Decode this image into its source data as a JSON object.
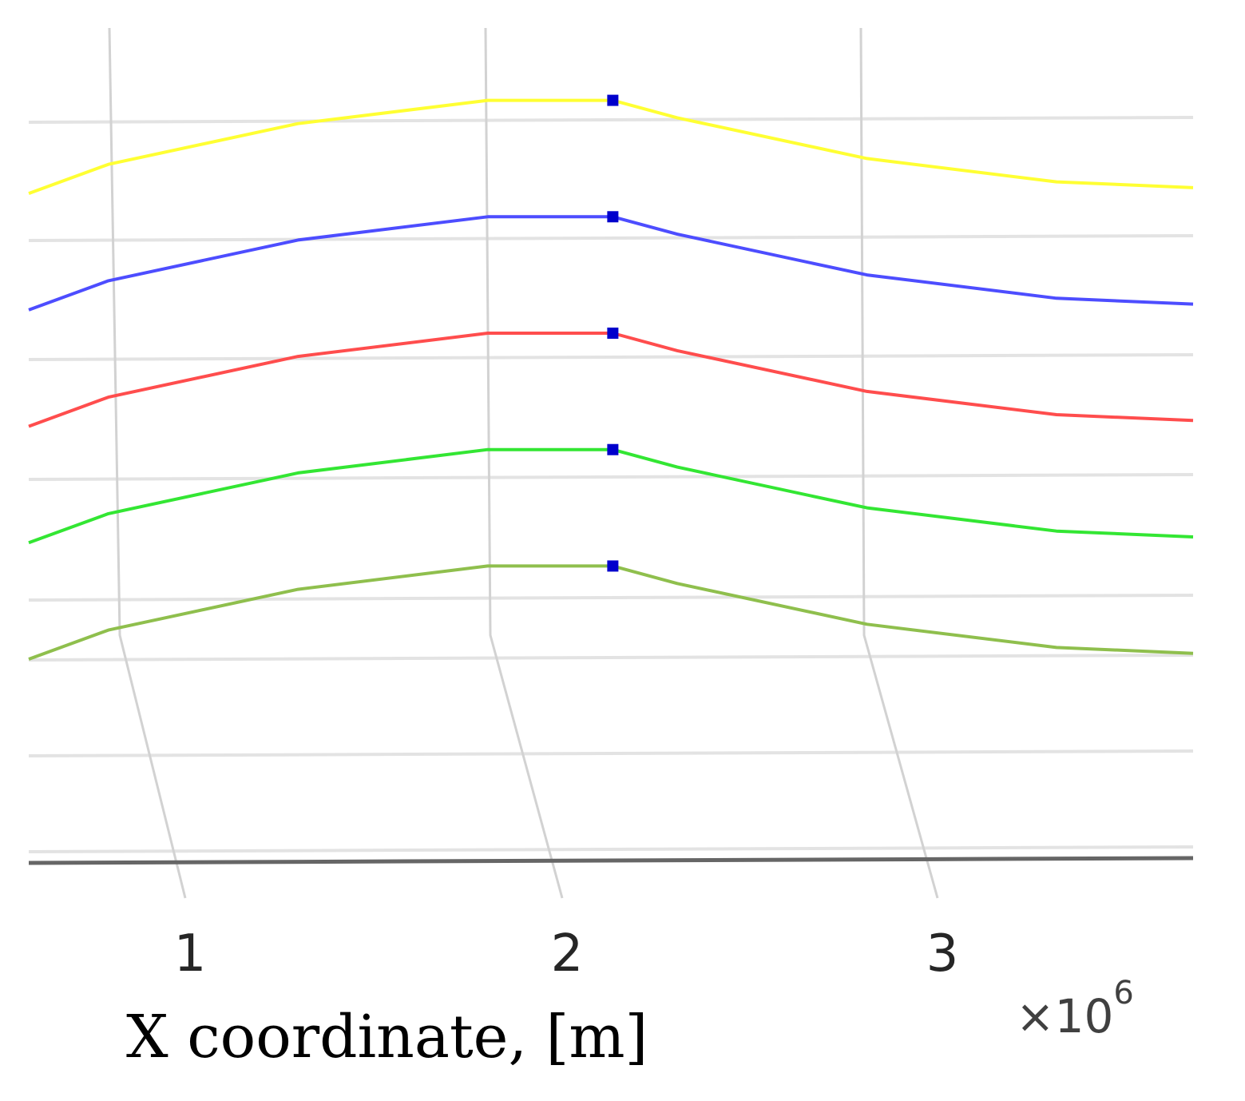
{
  "chart_data": {
    "type": "line",
    "title": "",
    "xlabel": "X coordinate, [m]",
    "x_multiplier": "×10",
    "x_multiplier_exponent": "6",
    "xlim": [
      0.79,
      3.86
    ],
    "xticks": [
      {
        "value": 1,
        "label": "1"
      },
      {
        "value": 2,
        "label": "2"
      },
      {
        "value": 3,
        "label": "3"
      }
    ],
    "ylim": [
      0,
      7
    ],
    "grid": true,
    "series": [
      {
        "color": "#ffff33",
        "points": [
          [
            0.79,
            5.75
          ],
          [
            1.0,
            6.0
          ],
          [
            1.5,
            6.35
          ],
          [
            2.0,
            6.55
          ],
          [
            2.33,
            6.55
          ],
          [
            2.5,
            6.4
          ],
          [
            3.0,
            6.05
          ],
          [
            3.5,
            5.85
          ],
          [
            3.86,
            5.8
          ]
        ]
      },
      {
        "color": "#4d4dff",
        "points": [
          [
            0.79,
            4.75
          ],
          [
            1.0,
            5.0
          ],
          [
            1.5,
            5.35
          ],
          [
            2.0,
            5.55
          ],
          [
            2.33,
            5.55
          ],
          [
            2.5,
            5.4
          ],
          [
            3.0,
            5.05
          ],
          [
            3.5,
            4.85
          ],
          [
            3.86,
            4.8
          ]
        ]
      },
      {
        "color": "#ff4d4d",
        "points": [
          [
            0.79,
            3.75
          ],
          [
            1.0,
            4.0
          ],
          [
            1.5,
            4.35
          ],
          [
            2.0,
            4.55
          ],
          [
            2.33,
            4.55
          ],
          [
            2.5,
            4.4
          ],
          [
            3.0,
            4.05
          ],
          [
            3.5,
            3.85
          ],
          [
            3.86,
            3.8
          ]
        ]
      },
      {
        "color": "#33e633",
        "points": [
          [
            0.79,
            2.75
          ],
          [
            1.0,
            3.0
          ],
          [
            1.5,
            3.35
          ],
          [
            2.0,
            3.55
          ],
          [
            2.33,
            3.55
          ],
          [
            2.5,
            3.4
          ],
          [
            3.0,
            3.05
          ],
          [
            3.5,
            2.85
          ],
          [
            3.86,
            2.8
          ]
        ]
      },
      {
        "color": "#8fbf4d",
        "points": [
          [
            0.79,
            1.75
          ],
          [
            1.0,
            2.0
          ],
          [
            1.5,
            2.35
          ],
          [
            2.0,
            2.55
          ],
          [
            2.33,
            2.55
          ],
          [
            2.5,
            2.4
          ],
          [
            3.0,
            2.05
          ],
          [
            3.5,
            1.85
          ],
          [
            3.86,
            1.8
          ]
        ]
      }
    ],
    "markers": {
      "color": "#0000cc",
      "points": [
        [
          2.33,
          6.55
        ],
        [
          2.33,
          5.55
        ],
        [
          2.33,
          4.55
        ],
        [
          2.33,
          3.55
        ],
        [
          2.33,
          2.55
        ]
      ]
    }
  }
}
